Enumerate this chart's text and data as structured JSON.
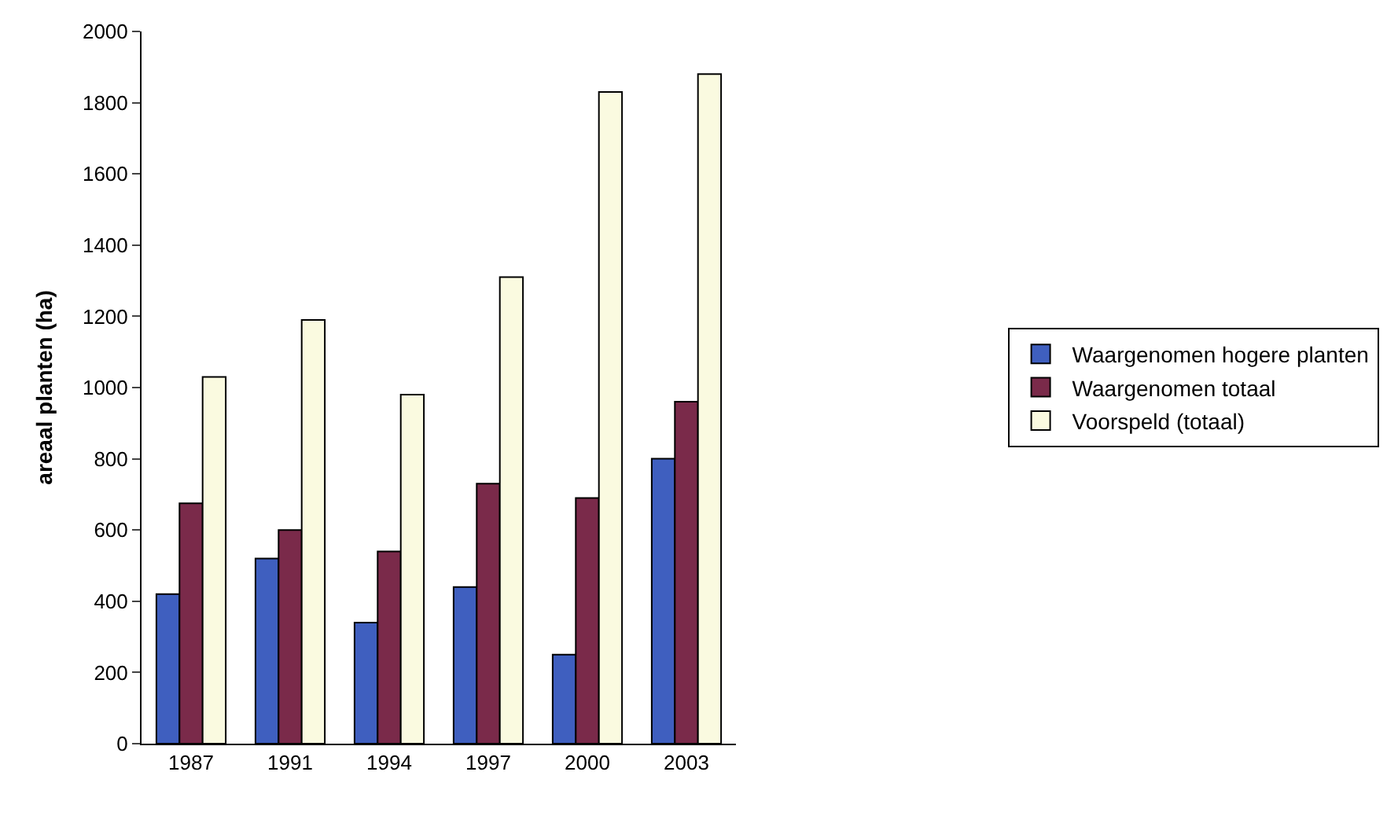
{
  "chart_data": {
    "type": "bar",
    "ylabel": "areaal planten (ha)",
    "categories": [
      "1987",
      "1991",
      "1994",
      "1997",
      "2000",
      "2003"
    ],
    "series": [
      {
        "name": "Waargenomen hogere planten",
        "color": "#3f5fbf",
        "values": [
          420,
          520,
          340,
          440,
          250,
          800
        ]
      },
      {
        "name": "Waargenomen totaal",
        "color": "#7a2a4a",
        "values": [
          675,
          600,
          540,
          730,
          690,
          960
        ]
      },
      {
        "name": "Voorspeld (totaal)",
        "color": "#fafae0",
        "values": [
          1030,
          1190,
          980,
          1310,
          1830,
          1880
        ]
      }
    ],
    "ylim": [
      0,
      2000
    ],
    "yticks": [
      0,
      200,
      400,
      600,
      800,
      1000,
      1200,
      1400,
      1600,
      1800,
      2000
    ],
    "grid": false,
    "legend": "right"
  }
}
